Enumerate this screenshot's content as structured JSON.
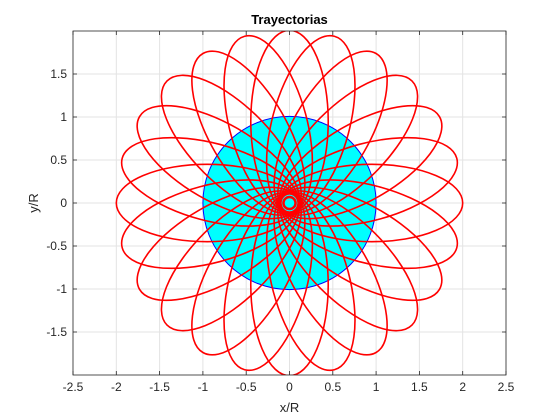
{
  "chart_data": {
    "type": "line",
    "title": "Trayectorias",
    "xlabel": "x/R",
    "ylabel": "y/R",
    "xlim": [
      -2.5,
      2.5
    ],
    "ylim": [
      -2.0,
      2.0
    ],
    "x_ticks": [
      -2.5,
      -2,
      -1.5,
      -1,
      -0.5,
      0,
      0.5,
      1,
      1.5,
      2,
      2.5
    ],
    "x_tick_labels": [
      "-2.5",
      "-2",
      "-1.5",
      "-1",
      "-0.5",
      "0",
      "0.5",
      "1",
      "1.5",
      "2",
      "2.5"
    ],
    "y_ticks": [
      -1.5,
      -1,
      -0.5,
      0,
      0.5,
      1,
      1.5
    ],
    "y_tick_labels": [
      "-1.5",
      "-1",
      "-0.5",
      "0",
      "0.5",
      "1",
      "1.5"
    ],
    "grid": true,
    "body": {
      "radius": 1.0,
      "fill": "#00ffff",
      "edge": "#0000ff"
    },
    "orbits": {
      "count": 24,
      "periapsis": 0.1,
      "apoapsis": 2.0,
      "color": "#ff0000"
    },
    "center_dot": {
      "radius": 0.07,
      "fill": "#00ffff",
      "edge": "#ff0000"
    }
  }
}
